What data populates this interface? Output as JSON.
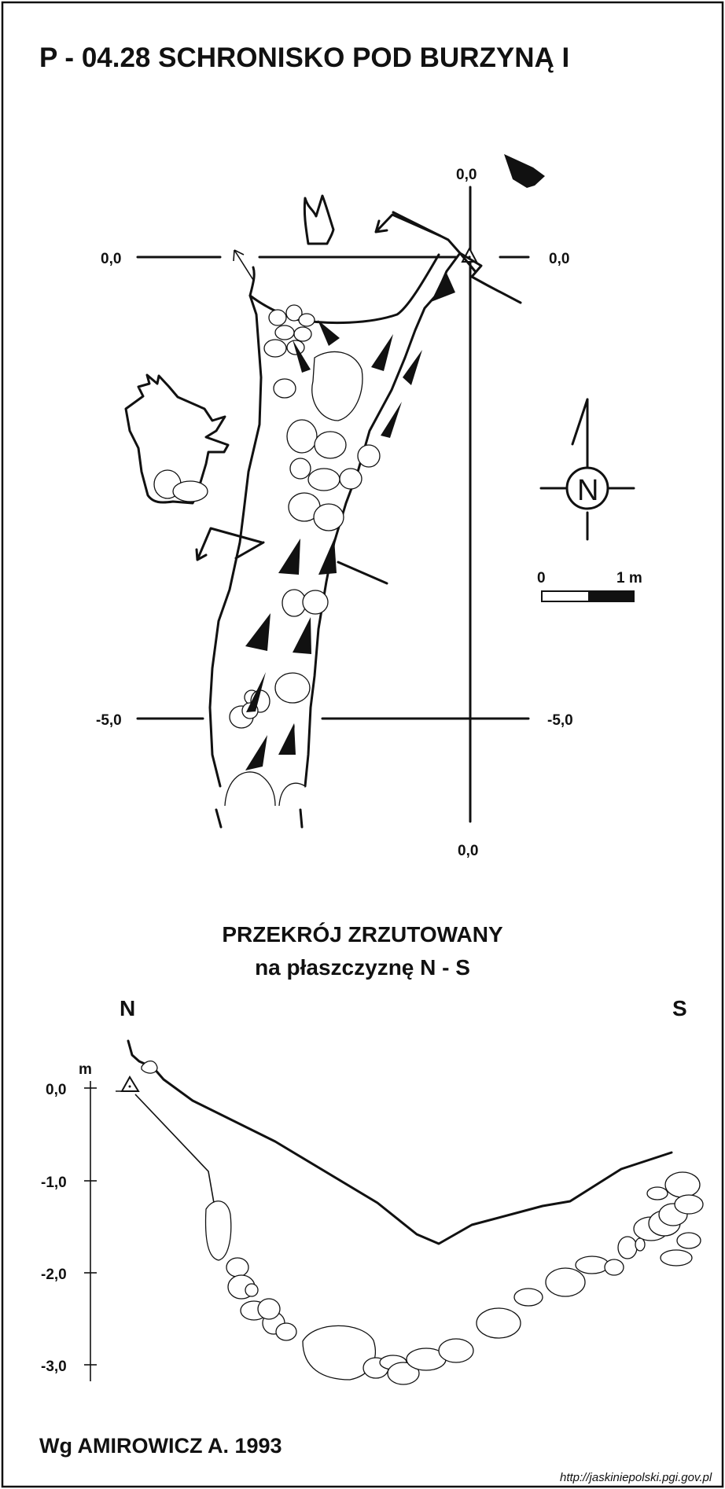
{
  "title": "P - 04.28  SCHRONISKO POD BURZYNĄ I",
  "plan": {
    "coord_top": "0,0",
    "coord_left": "0,0",
    "coord_right": "0,0",
    "coord_bottom": "0,0",
    "coord_minus5_left": "-5,0",
    "coord_minus5_right": "-5,0",
    "north_letter": "N",
    "scale_zero": "0",
    "scale_one": "1 m"
  },
  "section": {
    "title_line1": "PRZEKRÓJ ZRZUTOWANY",
    "title_line2": "na płaszczyznę N - S",
    "label_north": "N",
    "label_south": "S",
    "unit": "m",
    "ticks": [
      "0,0",
      "-1,0",
      "-2,0",
      "-3,0"
    ]
  },
  "author": "Wg AMIROWICZ A. 1993",
  "source_url": "http://jaskiniepolski.pgi.gov.pl"
}
